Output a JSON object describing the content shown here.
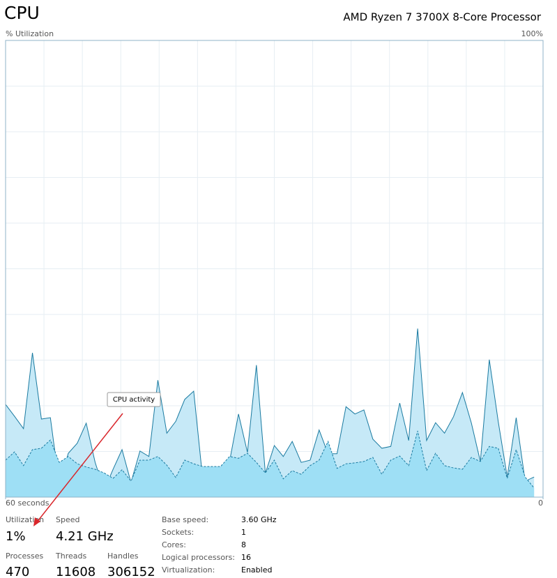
{
  "header": {
    "title": "CPU",
    "processor": "AMD Ryzen 7 3700X 8-Core Processor"
  },
  "chart_data": {
    "type": "area",
    "y_label": "% Utilization",
    "annotation": "CPU activity",
    "xlim": [
      60,
      0
    ],
    "xticks": [
      {
        "value": 60,
        "label": "60 seconds"
      },
      0
    ],
    "ylim": [
      0,
      100
    ],
    "yticks": [
      {
        "value": 100,
        "label": "100%"
      }
    ],
    "grid": true,
    "x": [
      60,
      59,
      58,
      57,
      56,
      55,
      54,
      53,
      52,
      51,
      50,
      49,
      48,
      47,
      46,
      45,
      44,
      43,
      42,
      41,
      40,
      39,
      38,
      37,
      36,
      35,
      34,
      33,
      32,
      31,
      30,
      29,
      28,
      27,
      26,
      25,
      24,
      23,
      22,
      21,
      20,
      19,
      18,
      17,
      16,
      15,
      14,
      13,
      12,
      11,
      10,
      9,
      8,
      7,
      6,
      5,
      4,
      3,
      2,
      1
    ],
    "series": [
      {
        "color": "#c6e9f7",
        "line": "#1a7aa0",
        "dashed": false,
        "values": [
          20.3,
          17.7,
          15,
          31.6,
          17.1,
          17.4,
          2.7,
          9.6,
          11.8,
          16.2,
          7.6,
          1.5,
          6.1,
          10.4,
          3.2,
          10.1,
          8.9,
          25.6,
          14,
          16.6,
          21.4,
          23.2,
          4.1,
          4.1,
          3.5,
          7.8,
          18.2,
          9.8,
          28.9,
          5.2,
          11.3,
          8.9,
          12.2,
          7.6,
          8.1,
          14.7,
          9.5,
          9.5,
          19.8,
          18.2,
          19.1,
          12.7,
          10.7,
          11.1,
          20.6,
          12.4,
          36.9,
          12.4,
          16.3,
          14,
          17.6,
          22.9,
          16.2,
          7.8,
          30.1,
          16.5,
          4.4,
          17.4,
          3.5,
          4.4
        ]
      },
      {
        "color": "#9edff5",
        "line": "#1a7aa0",
        "dashed": true,
        "values": [
          8.1,
          9.9,
          6.9,
          10.4,
          10.7,
          12.5,
          7.6,
          8.9,
          7.3,
          6.6,
          6.1,
          5.3,
          4.1,
          6,
          3.5,
          8.1,
          8.1,
          8.9,
          7,
          4.3,
          8.1,
          7.3,
          6.7,
          6.7,
          6.7,
          8.9,
          8.5,
          9.6,
          7.6,
          5.3,
          8.1,
          4,
          5.8,
          5,
          6.9,
          8.1,
          12.2,
          6.3,
          7.3,
          7.5,
          7.8,
          8.7,
          5,
          8.1,
          9,
          6.9,
          14.5,
          5.8,
          9.6,
          6.9,
          6.4,
          6.1,
          8.7,
          7.8,
          11.1,
          10.7,
          4.1,
          10.4,
          4.4,
          2
        ]
      }
    ]
  },
  "stats": [
    {
      "label": "Utilization",
      "value": "1%"
    },
    {
      "label": "Speed",
      "value": "4.21 GHz"
    },
    {
      "label": "Processes",
      "value": "470"
    },
    {
      "label": "Threads",
      "value": "11608"
    },
    {
      "label": "Handles",
      "value": "306152"
    }
  ],
  "details": [
    {
      "label": "Base speed:",
      "value": "3.60 GHz"
    },
    {
      "label": "Sockets:",
      "value": "1"
    },
    {
      "label": "Cores:",
      "value": "8"
    },
    {
      "label": "Logical processors:",
      "value": "16"
    },
    {
      "label": "Virtualization:",
      "value": "Enabled"
    }
  ]
}
